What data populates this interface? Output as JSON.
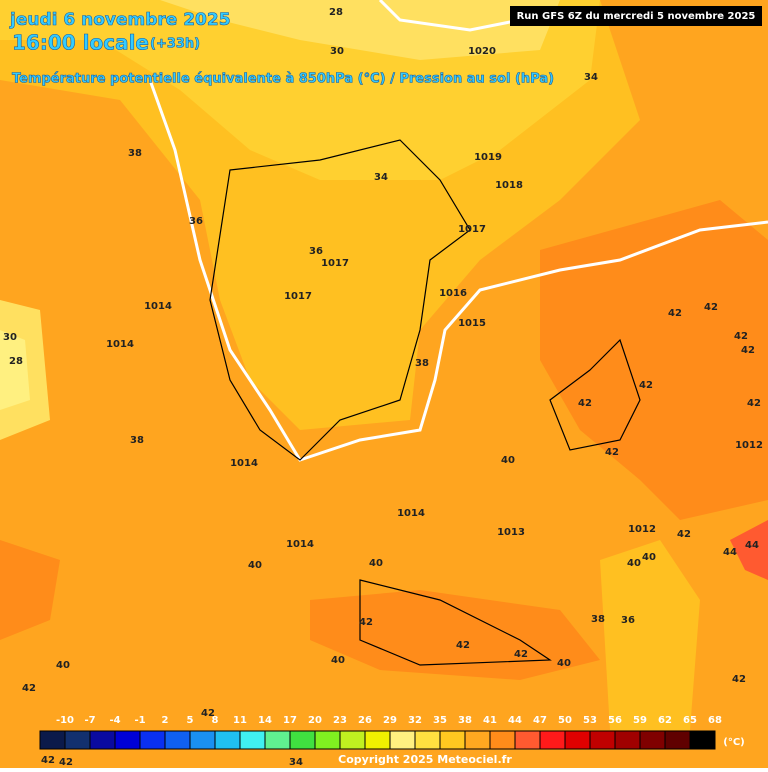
{
  "header": {
    "date": "jeudi 6 novembre 2025",
    "time": "16:00 locale",
    "offset": "(+33h)",
    "subtitle": "Température potentielle équivalente à 850hPa (°C) / Pression au sol (hPa)",
    "run": "Run GFS 6Z du mercredi 5 novembre 2025"
  },
  "theta_labels": [
    "28",
    "30",
    "34",
    "38",
    "34",
    "36",
    "36",
    "30",
    "28",
    "38",
    "42",
    "42",
    "42",
    "42",
    "42",
    "42",
    "42",
    "38",
    "42",
    "40",
    "40",
    "40",
    "42",
    "40",
    "40",
    "44",
    "44",
    "42",
    "42",
    "42",
    "38",
    "36",
    "40",
    "40",
    "40",
    "42",
    "42",
    "42",
    "42",
    "42",
    "34"
  ],
  "isobar_labels": [
    "1020",
    "1019",
    "1018",
    "1017",
    "1017",
    "1017",
    "1016",
    "1015",
    "1014",
    "1014",
    "1012",
    "1014",
    "1014",
    "1013",
    "1012",
    "1014"
  ],
  "colorbar": {
    "unit": "(°C)",
    "ticks": [
      -10,
      -7,
      -4,
      -1,
      2,
      5,
      8,
      11,
      14,
      17,
      20,
      23,
      26,
      29,
      32,
      35,
      38,
      41,
      44,
      47,
      50,
      53,
      56,
      59,
      62,
      65,
      68
    ],
    "colors": [
      "#0b1a4a",
      "#12306e",
      "#0a0aa0",
      "#0000d8",
      "#0a30f0",
      "#1060f0",
      "#1a90f0",
      "#20c0f0",
      "#40f0f0",
      "#60f090",
      "#40e040",
      "#80f020",
      "#c0f020",
      "#f0f000",
      "#fff080",
      "#ffe040",
      "#ffc820",
      "#ffa820",
      "#ff8c1a",
      "#ff5a30",
      "#ff1a1a",
      "#e00000",
      "#c00000",
      "#a00000",
      "#800000",
      "#600000",
      "#000000"
    ]
  },
  "footer": {
    "copyright": "Copyright 2025 Meteociel.fr"
  }
}
